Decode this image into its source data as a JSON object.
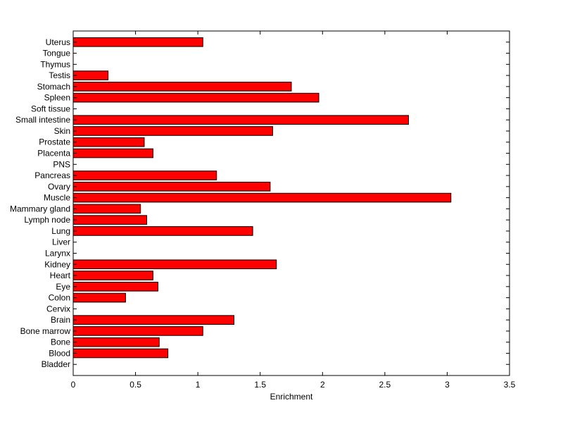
{
  "chart_data": {
    "type": "bar",
    "orientation": "horizontal",
    "categories": [
      "Uterus",
      "Tongue",
      "Thymus",
      "Testis",
      "Stomach",
      "Spleen",
      "Soft tissue",
      "Small intestine",
      "Skin",
      "Prostate",
      "Placenta",
      "PNS",
      "Pancreas",
      "Ovary",
      "Muscle",
      "Mammary gland",
      "Lymph node",
      "Lung",
      "Liver",
      "Larynx",
      "Kidney",
      "Heart",
      "Eye",
      "Colon",
      "Cervix",
      "Brain",
      "Bone marrow",
      "Bone",
      "Blood",
      "Bladder"
    ],
    "values": [
      1.04,
      0,
      0,
      0.28,
      1.75,
      1.97,
      0,
      2.69,
      1.6,
      0.57,
      0.64,
      0,
      1.15,
      1.58,
      3.03,
      0.54,
      0.59,
      1.44,
      0,
      0,
      1.63,
      0.64,
      0.68,
      0.42,
      0,
      1.29,
      1.04,
      0.69,
      0.76,
      0
    ],
    "xlabel": "Enrichment",
    "ylabel": "",
    "xlim": [
      0,
      3.5
    ],
    "xticks": [
      "0",
      "0.5",
      "1",
      "1.5",
      "2",
      "2.5",
      "3",
      "3.5"
    ],
    "grid": false,
    "bar_color": "#ff0000",
    "edge_color": "#000000"
  }
}
